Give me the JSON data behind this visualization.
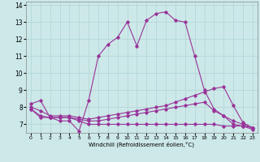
{
  "xlabel": "Windchill (Refroidissement éolien,°C)",
  "xlim": [
    -0.5,
    23.5
  ],
  "ylim": [
    6.5,
    14.2
  ],
  "yticks": [
    7,
    8,
    9,
    10,
    11,
    12,
    13,
    14
  ],
  "xticks": [
    0,
    1,
    2,
    3,
    4,
    5,
    6,
    7,
    8,
    9,
    10,
    11,
    12,
    13,
    14,
    15,
    16,
    17,
    18,
    19,
    20,
    21,
    22,
    23
  ],
  "background_color": "#cce8e8",
  "grid_color": "#b0d4d4",
  "line_color": "#993399",
  "lines": [
    {
      "x": [
        0,
        1,
        2,
        3,
        4,
        5,
        6,
        7,
        8,
        9,
        10,
        11,
        12,
        13,
        14,
        15,
        16,
        17,
        18,
        19,
        20,
        21,
        22,
        23
      ],
      "y": [
        8.2,
        8.4,
        7.4,
        7.2,
        7.2,
        6.6,
        8.4,
        11.0,
        11.7,
        12.1,
        13.0,
        11.6,
        13.1,
        13.5,
        13.6,
        13.1,
        13.0,
        11.0,
        9.0,
        7.9,
        7.5,
        7.0,
        6.9,
        6.7
      ]
    },
    {
      "x": [
        0,
        1,
        2,
        3,
        4,
        5,
        6,
        7,
        8,
        9,
        10,
        11,
        12,
        13,
        14,
        15,
        16,
        17,
        18,
        19,
        20,
        21,
        22,
        23
      ],
      "y": [
        8.0,
        7.8,
        7.5,
        7.5,
        7.5,
        7.4,
        7.3,
        7.4,
        7.5,
        7.6,
        7.7,
        7.8,
        7.9,
        8.0,
        8.1,
        8.3,
        8.5,
        8.7,
        8.9,
        9.1,
        9.2,
        8.1,
        7.1,
        6.8
      ]
    },
    {
      "x": [
        0,
        1,
        2,
        3,
        4,
        5,
        6,
        7,
        8,
        9,
        10,
        11,
        12,
        13,
        14,
        15,
        16,
        17,
        18,
        19,
        20,
        21,
        22,
        23
      ],
      "y": [
        7.9,
        7.5,
        7.4,
        7.4,
        7.4,
        7.3,
        7.2,
        7.2,
        7.3,
        7.4,
        7.5,
        7.6,
        7.7,
        7.8,
        7.9,
        8.0,
        8.1,
        8.2,
        8.3,
        7.8,
        7.5,
        7.2,
        7.0,
        6.8
      ]
    },
    {
      "x": [
        0,
        1,
        2,
        3,
        4,
        5,
        6,
        7,
        8,
        9,
        10,
        11,
        12,
        13,
        14,
        15,
        16,
        17,
        18,
        19,
        20,
        21,
        22,
        23
      ],
      "y": [
        7.9,
        7.4,
        7.4,
        7.4,
        7.4,
        7.2,
        7.0,
        7.0,
        7.0,
        7.0,
        7.0,
        7.0,
        7.0,
        7.0,
        7.0,
        7.0,
        7.0,
        7.0,
        7.0,
        7.0,
        6.9,
        6.9,
        6.9,
        6.8
      ]
    }
  ]
}
